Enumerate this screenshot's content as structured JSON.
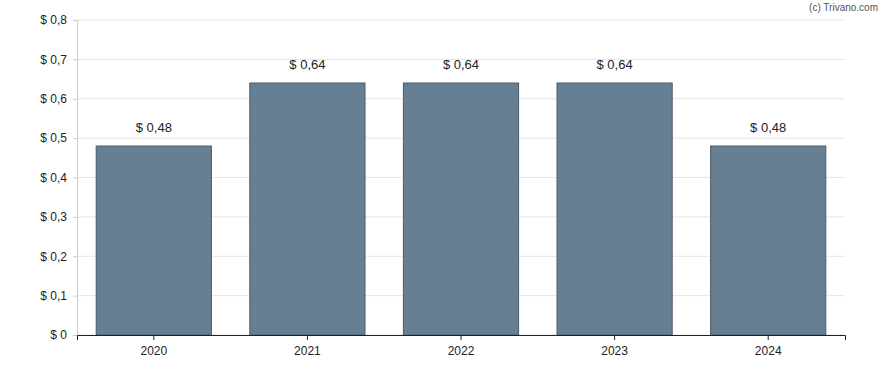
{
  "chart_data": {
    "type": "bar",
    "annotations": [
      "(c) Trivano.com"
    ],
    "categories": [
      "2020",
      "2021",
      "2022",
      "2023",
      "2024"
    ],
    "values": [
      0.48,
      0.64,
      0.64,
      0.64,
      0.48
    ],
    "value_labels": [
      "$ 0,48",
      "$ 0,64",
      "$ 0,64",
      "$ 0,64",
      "$ 0,48"
    ],
    "data_labels": true,
    "color": "#667f92",
    "ylim": [
      0,
      0.8
    ],
    "yticks": [
      {
        "value": 0,
        "label": "$ 0"
      },
      {
        "value": 0.1,
        "label": "$ 0,1"
      },
      {
        "value": 0.2,
        "label": "$ 0,2"
      },
      {
        "value": 0.3,
        "label": "$ 0,3"
      },
      {
        "value": 0.4,
        "label": "$ 0,4"
      },
      {
        "value": 0.5,
        "label": "$ 0,5"
      },
      {
        "value": 0.6,
        "label": "$ 0,6"
      },
      {
        "value": 0.7,
        "label": "$ 0,7"
      },
      {
        "value": 0.8,
        "label": "$ 0,8"
      }
    ],
    "grid": true
  }
}
